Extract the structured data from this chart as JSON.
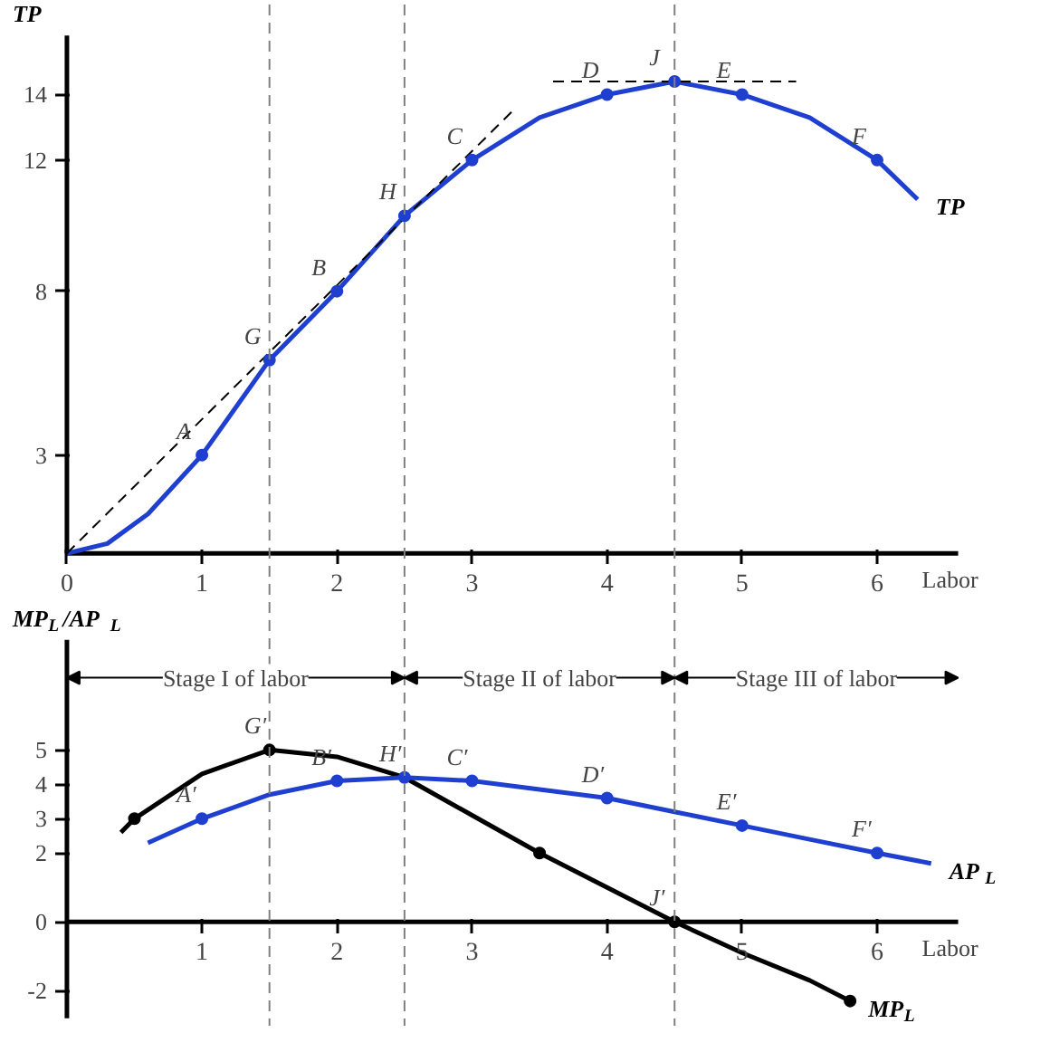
{
  "chart_data": [
    {
      "type": "line",
      "ylabel": "TP",
      "xlabel": "Labor",
      "xlim": [
        0,
        6.6
      ],
      "ylim": [
        0,
        15.8
      ],
      "xticks": [
        0,
        1,
        2,
        3,
        4,
        5,
        6
      ],
      "yticks": [
        3,
        8,
        12,
        14
      ],
      "grid": false,
      "legend": false,
      "marker": "none",
      "series": [
        {
          "name": "TP",
          "color": "#1f3fd0",
          "x": [
            0,
            0.3,
            0.6,
            1,
            1.5,
            2,
            2.5,
            3,
            3.5,
            4,
            4.5,
            5,
            5.5,
            6,
            6.3
          ],
          "values": [
            0,
            0.3,
            1.2,
            3,
            5.9,
            8,
            10.3,
            12,
            13.3,
            14,
            14.4,
            14,
            13.3,
            12,
            10.8
          ]
        },
        {
          "type": "line",
          "color": "#000000",
          "line_style": "dashed",
          "x": [
            0,
            3.3
          ],
          "values": [
            0,
            13.5
          ]
        },
        {
          "type": "line",
          "color": "#000000",
          "line_style": "dashed",
          "x": [
            3.6,
            5.4
          ],
          "values": [
            14.4,
            14.4
          ]
        },
        {
          "type": "scatter",
          "marker": "circle",
          "color": "#1f3fd0",
          "x": [
            1,
            1.5,
            2,
            2.5,
            3,
            4,
            4.5,
            5,
            6
          ],
          "values": [
            3,
            5.9,
            8,
            10.3,
            12,
            14,
            14.4,
            14,
            12
          ]
        }
      ],
      "ref_lines": [
        {
          "axis": "x",
          "value": 1.5,
          "color": "#808080",
          "line_style": "dashed"
        },
        {
          "axis": "x",
          "value": 2.5,
          "color": "#808080",
          "line_style": "dashed"
        },
        {
          "axis": "x",
          "value": 4.5,
          "color": "#808080",
          "line_style": "dashed"
        }
      ],
      "annotations": [
        {
          "text": "A",
          "x": 1,
          "y": 3
        },
        {
          "text": "G",
          "x": 1.5,
          "y": 5.9
        },
        {
          "text": "B",
          "x": 2,
          "y": 8
        },
        {
          "text": "H",
          "x": 2.5,
          "y": 10.3
        },
        {
          "text": "C",
          "x": 3,
          "y": 12
        },
        {
          "text": "D",
          "x": 4,
          "y": 14
        },
        {
          "text": "J",
          "x": 4.5,
          "y": 14.4
        },
        {
          "text": "E",
          "x": 5,
          "y": 14
        },
        {
          "text": "F",
          "x": 6,
          "y": 12
        }
      ]
    },
    {
      "type": "line",
      "ylabel": "MP$_{L}$/AP$_{L}$",
      "xlabel": "Labor",
      "xlim": [
        0,
        6.6
      ],
      "ylim": [
        -2.8,
        8.2
      ],
      "xticks": [
        1,
        2,
        3,
        4,
        5,
        6
      ],
      "yticks": [
        -2,
        0,
        2,
        3,
        4,
        5
      ],
      "grid": false,
      "legend": false,
      "marker": "none",
      "series": [
        {
          "name": "MP$_{L}$",
          "color": "#000000",
          "x": [
            0.4,
            0.5,
            1,
            1.5,
            2,
            2.5,
            3,
            3.5,
            4,
            4.5,
            5,
            5.5,
            5.8
          ],
          "values": [
            2.6,
            3,
            4.3,
            5,
            4.8,
            4.2,
            3.1,
            2,
            1,
            0,
            -0.9,
            -1.7,
            -2.3
          ]
        },
        {
          "name": "AP$_{L}$",
          "color": "#1f3fd0",
          "x": [
            0.6,
            1,
            1.5,
            2,
            2.5,
            3,
            3.5,
            4,
            4.5,
            5,
            5.5,
            6,
            6.4
          ],
          "values": [
            2.3,
            3,
            3.7,
            4.1,
            4.2,
            4.1,
            3.85,
            3.6,
            3.2,
            2.8,
            2.4,
            2.0,
            1.7
          ]
        },
        {
          "type": "scatter",
          "marker": "circle",
          "color": "#1f3fd0",
          "x": [
            1,
            2,
            2.5,
            3,
            4,
            5,
            6
          ],
          "values": [
            3,
            4.1,
            4.2,
            4.1,
            3.6,
            2.8,
            2.0
          ]
        },
        {
          "type": "scatter",
          "marker": "circle",
          "color": "#000000",
          "x": [
            0.5,
            1.5,
            3.5,
            4.5,
            5.8
          ],
          "values": [
            3,
            5,
            2,
            0,
            -2.3
          ]
        }
      ],
      "ref_lines": [
        {
          "axis": "x",
          "value": 1.5,
          "color": "#808080",
          "line_style": "dashed"
        },
        {
          "axis": "x",
          "value": 2.5,
          "color": "#808080",
          "line_style": "dashed"
        },
        {
          "axis": "x",
          "value": 4.5,
          "color": "#808080",
          "line_style": "dashed"
        }
      ],
      "annotations": [
        {
          "text": "Stage I of labor",
          "x": 2.5,
          "y": 7.1
        },
        {
          "text": "Stage II of labor",
          "x": 2.5,
          "y": 7.1
        },
        {
          "text": "Stage III of labor",
          "x": 4.5,
          "y": 7.1
        },
        {
          "text": "A′",
          "x": 1,
          "y": 3
        },
        {
          "text": "G′",
          "x": 1.5,
          "y": 5
        },
        {
          "text": "B′",
          "x": 2,
          "y": 4.1
        },
        {
          "text": "H′",
          "x": 2.5,
          "y": 4.2
        },
        {
          "text": "C′",
          "x": 3,
          "y": 4.1
        },
        {
          "text": "D′",
          "x": 4,
          "y": 3.6
        },
        {
          "text": "E′",
          "x": 5,
          "y": 2.8
        },
        {
          "text": "F′",
          "x": 6,
          "y": 2.0
        },
        {
          "text": "J′",
          "x": 4.5,
          "y": 0
        }
      ]
    }
  ]
}
